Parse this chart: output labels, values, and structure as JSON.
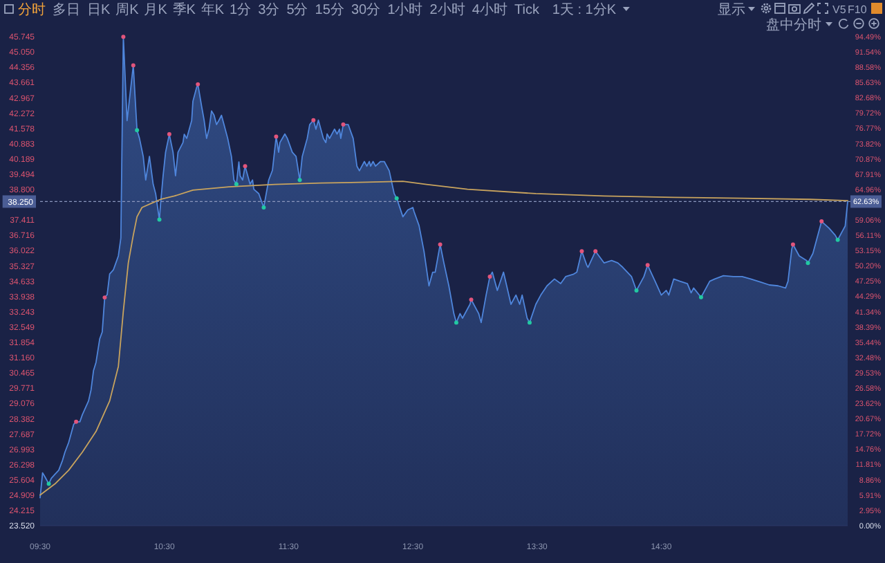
{
  "chart_data": {
    "type": "area",
    "annotations": [
      "分时",
      "多日",
      "日K",
      "周K",
      "月K",
      "季K",
      "年K",
      "1分",
      "3分",
      "5分",
      "15分",
      "30分",
      "1小时",
      "2小时",
      "4小时",
      "Tick",
      "1天 : 1分K",
      "显示",
      "V5",
      "F10",
      "盘中分时",
      {
        "text": "62.63%",
        "x": 16,
        "y": 38.25
      }
    ],
    "xlim": [
      9.5,
      16
    ],
    "xticks": [
      {
        "value": 9.5,
        "label": "09:30"
      },
      {
        "value": 10.5,
        "label": "10:30"
      },
      {
        "value": 11.5,
        "label": "11:30"
      },
      {
        "value": 12.5,
        "label": "12:30"
      },
      {
        "value": 13.5,
        "label": "13:30"
      },
      {
        "value": 14.5,
        "label": "14:30"
      }
    ],
    "ylim": [
      23.52,
      45.745
    ],
    "yticks": [
      {
        "value": 23.52,
        "label": "23.520"
      },
      24.215,
      24.909,
      25.604,
      26.298,
      26.993,
      27.687,
      28.382,
      29.076,
      29.771,
      30.465,
      {
        "value": 31.16,
        "label": "31.160"
      },
      31.854,
      32.549,
      33.243,
      33.938,
      34.633,
      35.327,
      36.022,
      36.716,
      37.411,
      {
        "value": 38.8,
        "label": "38.800"
      },
      39.494,
      40.189,
      40.883,
      41.578,
      42.272,
      42.967,
      43.661,
      44.356,
      {
        "value": 45.05,
        "label": "45.050"
      },
      45.745
    ],
    "y2lim": [
      0,
      94.49
    ],
    "y2ticks": [
      {
        "value": 0,
        "label": "0.00%"
      },
      {
        "value": 2.95,
        "label": "2.95%"
      },
      {
        "value": 5.91,
        "label": "5.91%"
      },
      {
        "value": 8.86,
        "label": "8.86%"
      },
      {
        "value": 11.81,
        "label": "11.81%"
      },
      {
        "value": 14.76,
        "label": "14.76%"
      },
      {
        "value": 17.72,
        "label": "17.72%"
      },
      {
        "value": 20.67,
        "label": "20.67%"
      },
      {
        "value": 23.62,
        "label": "23.62%"
      },
      {
        "value": 26.58,
        "label": "26.58%"
      },
      {
        "value": 29.53,
        "label": "29.53%"
      },
      {
        "value": 32.48,
        "label": "32.48%"
      },
      {
        "value": 35.44,
        "label": "35.44%"
      },
      {
        "value": 38.39,
        "label": "38.39%"
      },
      {
        "value": 41.34,
        "label": "41.34%"
      },
      {
        "value": 44.29,
        "label": "44.29%"
      },
      {
        "value": 47.25,
        "label": "47.25%"
      },
      {
        "value": 50.2,
        "label": "50.20%"
      },
      {
        "value": 53.15,
        "label": "53.15%"
      },
      {
        "value": 56.11,
        "label": "56.11%"
      },
      {
        "value": 59.06,
        "label": "59.06%"
      },
      {
        "value": 64.96,
        "label": "64.96%"
      },
      {
        "value": 67.91,
        "label": "67.91%"
      },
      {
        "value": 70.87,
        "label": "70.87%"
      },
      {
        "value": 73.82,
        "label": "73.82%"
      },
      {
        "value": 76.77,
        "label": "76.77%"
      },
      {
        "value": 79.72,
        "label": "79.72%"
      },
      {
        "value": 82.68,
        "label": "82.68%"
      },
      {
        "value": 85.63,
        "label": "85.63%"
      },
      {
        "value": 88.58,
        "label": "88.58%"
      },
      {
        "value": 91.54,
        "label": "91.54%"
      },
      {
        "value": 94.49,
        "label": "94.49%"
      }
    ],
    "ref_lines": [
      {
        "axis": "y",
        "value": 38.25,
        "label": "38.250",
        "line_style": "dashed",
        "color": "#8a96bd"
      }
    ],
    "series": [
      {
        "color": "#4f86dc",
        "x": [
          9.5,
          9.52,
          9.54,
          9.57,
          9.59,
          9.62,
          9.65,
          9.68,
          9.7,
          9.73,
          9.77,
          9.79,
          9.82,
          9.84,
          9.86,
          9.89,
          9.91,
          9.93,
          9.95,
          9.98,
          10.0,
          10.02,
          10.04,
          10.06,
          10.09,
          10.11,
          10.13,
          10.15,
          10.17,
          10.2,
          10.25,
          10.28,
          10.3,
          10.33,
          10.35,
          10.38,
          10.41,
          10.43,
          10.46,
          10.47,
          10.49,
          10.51,
          10.54,
          10.57,
          10.59,
          10.61,
          10.65,
          10.66,
          10.68,
          10.72,
          10.73,
          10.76,
          10.77,
          10.8,
          10.82,
          10.84,
          10.86,
          10.88,
          10.9,
          10.92,
          10.94,
          10.96,
          10.98,
          11.01,
          11.04,
          11.06,
          11.08,
          11.1,
          11.11,
          11.13,
          11.15,
          11.19,
          11.21,
          11.22,
          11.26,
          11.3,
          11.32,
          11.34,
          11.37,
          11.4,
          11.42,
          11.43,
          11.47,
          11.49,
          11.53,
          11.56,
          11.59,
          11.61,
          11.65,
          11.67,
          11.7,
          11.72,
          11.74,
          11.78,
          11.8,
          11.81,
          11.83,
          11.87,
          11.89,
          11.91,
          11.92,
          11.94,
          11.98,
          12.02,
          12.03,
          12.05,
          12.07,
          12.11,
          12.13,
          12.15,
          12.16,
          12.18,
          12.2,
          12.24,
          12.27,
          12.31,
          12.35,
          12.37,
          12.42,
          12.46,
          12.5,
          12.51,
          12.55,
          12.59,
          12.63,
          12.66,
          12.68,
          12.72,
          12.75,
          12.79,
          12.83,
          12.85,
          12.88,
          12.9,
          12.96,
          12.97,
          13.03,
          13.05,
          13.09,
          13.12,
          13.14,
          13.18,
          13.23,
          13.29,
          13.33,
          13.36,
          13.38,
          13.42,
          13.44,
          13.49,
          13.53,
          13.58,
          13.64,
          13.69,
          13.73,
          13.79,
          13.82,
          13.86,
          13.9,
          13.91,
          13.97,
          14.04,
          14.1,
          14.15,
          14.19,
          14.26,
          14.3,
          14.36,
          14.39,
          14.45,
          14.5,
          14.54,
          14.56,
          14.6,
          14.65,
          14.71,
          14.74,
          14.76,
          14.82,
          14.89,
          14.93,
          15.0,
          15.08,
          15.15,
          15.22,
          15.3,
          15.37,
          15.44,
          15.5,
          15.52,
          15.55,
          15.56,
          15.61,
          15.67,
          15.68,
          15.72,
          15.76,
          15.79,
          15.85,
          15.9,
          15.92,
          15.96,
          15.98,
          16.0
        ],
        "values": [
          24.79,
          25.92,
          25.73,
          25.42,
          25.67,
          25.86,
          26.04,
          26.48,
          26.86,
          27.3,
          28.12,
          28.24,
          28.24,
          28.56,
          28.81,
          29.19,
          29.69,
          30.57,
          30.94,
          32.01,
          32.32,
          33.89,
          34.02,
          34.96,
          35.15,
          35.46,
          35.78,
          36.59,
          45.74,
          41.93,
          44.44,
          41.49,
          41.12,
          40.3,
          39.23,
          40.3,
          39.04,
          38.61,
          37.43,
          38.16,
          39.42,
          40.49,
          41.31,
          40.49,
          39.42,
          40.49,
          40.93,
          41.31,
          41.12,
          41.93,
          42.81,
          43.44,
          43.58,
          42.58,
          41.95,
          41.12,
          41.56,
          42.37,
          42.18,
          41.75,
          41.95,
          42.17,
          41.75,
          41.12,
          40.3,
          39.23,
          39.04,
          40.05,
          39.42,
          39.23,
          39.86,
          39.04,
          39.23,
          38.81,
          38.61,
          37.98,
          38.61,
          39.23,
          39.67,
          41.2,
          40.49,
          40.93,
          41.32,
          41.12,
          40.49,
          40.3,
          39.23,
          40.3,
          41.12,
          41.75,
          41.95,
          41.54,
          41.95,
          41.12,
          40.93,
          41.32,
          41.12,
          41.54,
          41.32,
          41.54,
          41.12,
          41.75,
          41.75,
          41.12,
          40.7,
          39.86,
          39.65,
          40.07,
          39.86,
          40.07,
          39.86,
          40.07,
          39.86,
          40.07,
          40.07,
          39.65,
          38.61,
          38.4,
          37.56,
          37.87,
          37.98,
          37.79,
          37.16,
          35.99,
          34.42,
          35.04,
          35.04,
          36.3,
          35.46,
          34.42,
          33.16,
          32.75,
          33.16,
          32.95,
          33.58,
          33.79,
          33.16,
          32.75,
          34.0,
          34.84,
          35.04,
          34.21,
          35.04,
          33.58,
          34.0,
          33.58,
          34.0,
          32.95,
          32.75,
          33.58,
          34.0,
          34.42,
          34.73,
          34.52,
          34.84,
          34.94,
          35.04,
          35.99,
          35.36,
          35.26,
          35.99,
          35.46,
          35.57,
          35.46,
          35.26,
          34.84,
          34.21,
          34.84,
          35.36,
          34.63,
          34.0,
          34.21,
          34.0,
          34.73,
          34.63,
          34.52,
          34.1,
          34.32,
          33.9,
          34.63,
          34.73,
          34.88,
          34.84,
          34.84,
          34.73,
          34.59,
          34.46,
          34.42,
          34.32,
          34.63,
          36.09,
          36.3,
          35.78,
          35.57,
          35.46,
          35.89,
          36.72,
          37.35,
          37.04,
          36.72,
          36.51,
          36.93,
          37.14,
          38.25
        ]
      },
      {
        "type": "line",
        "color": "#c9a45e",
        "x": [
          9.5,
          9.62,
          9.73,
          9.84,
          9.95,
          10.06,
          10.13,
          10.17,
          10.21,
          10.25,
          10.28,
          10.32,
          10.4,
          10.47,
          10.58,
          10.73,
          11.02,
          11.39,
          11.76,
          12.13,
          12.42,
          12.61,
          12.94,
          13.49,
          14.04,
          14.6,
          15.15,
          15.7,
          16.0
        ],
        "values": [
          24.91,
          25.42,
          26.04,
          26.86,
          27.8,
          29.19,
          30.76,
          33.27,
          35.46,
          36.72,
          37.56,
          37.98,
          38.18,
          38.35,
          38.5,
          38.77,
          38.92,
          39.03,
          39.09,
          39.13,
          39.17,
          39.03,
          38.81,
          38.61,
          38.5,
          38.44,
          38.4,
          38.35,
          38.29
        ]
      },
      {
        "type": "scatter",
        "marker": "circle",
        "color": "#e2557c",
        "x": [
          9.79,
          10.02,
          10.17,
          10.25,
          10.54,
          10.77,
          11.15,
          11.4,
          11.7,
          11.94,
          12.72,
          12.97,
          13.12,
          13.86,
          13.97,
          14.39,
          15.56,
          15.79
        ],
        "values": [
          28.24,
          33.89,
          45.74,
          44.44,
          41.31,
          43.58,
          39.86,
          41.2,
          41.95,
          41.75,
          36.3,
          33.79,
          34.84,
          35.99,
          35.99,
          35.36,
          36.3,
          37.35
        ]
      },
      {
        "type": "scatter",
        "marker": "circle",
        "color": "#22c9a2",
        "x": [
          9.57,
          10.28,
          10.46,
          11.08,
          11.3,
          11.59,
          12.37,
          12.85,
          13.44,
          14.3,
          14.82,
          15.68,
          15.92
        ],
        "values": [
          25.42,
          41.49,
          37.43,
          39.04,
          37.98,
          39.23,
          38.4,
          32.75,
          32.75,
          34.21,
          33.9,
          35.46,
          36.51
        ]
      }
    ]
  }
}
